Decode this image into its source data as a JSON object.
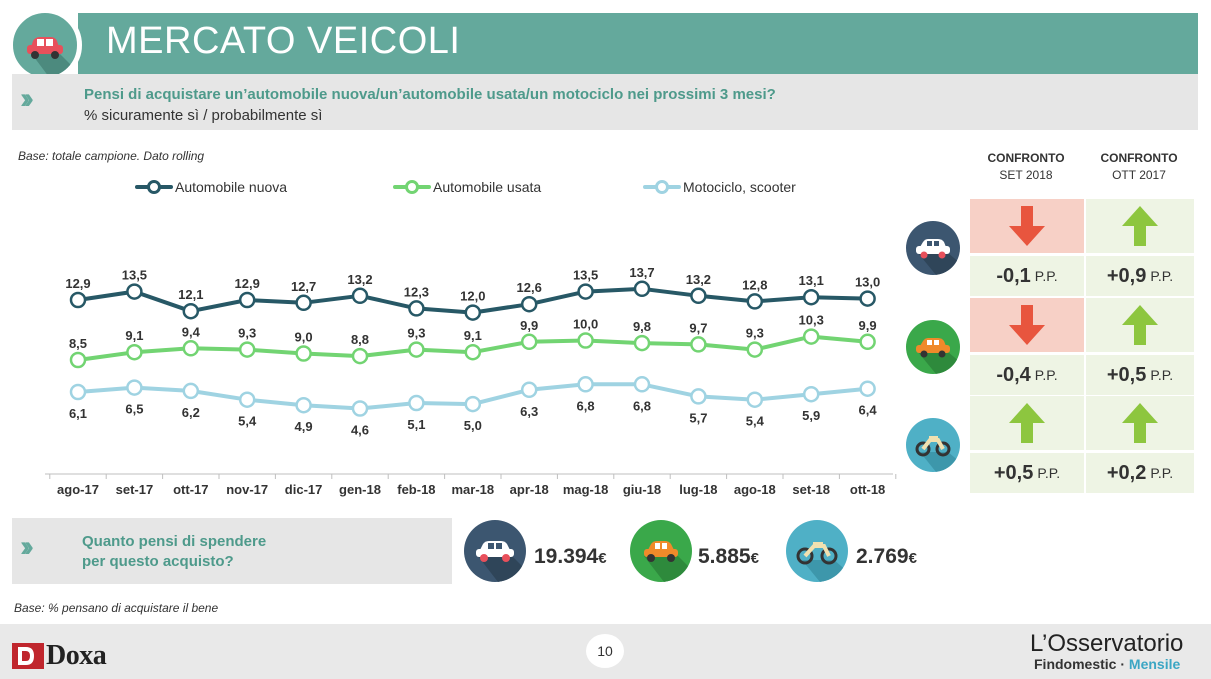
{
  "header": {
    "title": "MERCATO VEICOLI",
    "question": "Pensi di acquistare un’automobile nuova/un’automobile usata/un motociclo nei prossimi 3 mesi?",
    "subtitle": "% sicuramente sì / probabilmente sì"
  },
  "base_note": "Base: totale campione. Dato rolling",
  "chart_data": {
    "type": "line",
    "categories": [
      "ago-17",
      "set-17",
      "ott-17",
      "nov-17",
      "dic-17",
      "gen-18",
      "feb-18",
      "mar-18",
      "apr-18",
      "mag-18",
      "giu-18",
      "lug-18",
      "ago-18",
      "set-18",
      "ott-18"
    ],
    "series": [
      {
        "name": "Automobile nuova",
        "color": "#275866",
        "values": [
          12.9,
          13.5,
          12.1,
          12.9,
          12.7,
          13.2,
          12.3,
          12.0,
          12.6,
          13.5,
          13.7,
          13.2,
          12.8,
          13.1,
          13.0
        ],
        "labels": [
          "12,9",
          "13,5",
          "12,1",
          "12,9",
          "12,7",
          "13,2",
          "12,3",
          "12,0",
          "12,6",
          "13,5",
          "13,7",
          "13,2",
          "12,8",
          "13,1",
          "13,0"
        ]
      },
      {
        "name": "Automobile usata",
        "color": "#72d472",
        "values": [
          8.5,
          9.1,
          9.4,
          9.3,
          9.0,
          8.8,
          9.3,
          9.1,
          9.9,
          10.0,
          9.8,
          9.7,
          9.3,
          10.3,
          9.9
        ],
        "labels": [
          "8,5",
          "9,1",
          "9,4",
          "9,3",
          "9,0",
          "8,8",
          "9,3",
          "9,1",
          "9,9",
          "10,0",
          "9,8",
          "9,7",
          "9,3",
          "10,3",
          "9,9"
        ]
      },
      {
        "name": "Motociclo, scooter",
        "color": "#9fd3e2",
        "values": [
          6.1,
          6.5,
          6.2,
          5.4,
          4.9,
          4.6,
          5.1,
          5.0,
          6.3,
          6.8,
          6.8,
          5.7,
          5.4,
          5.9,
          6.4
        ],
        "labels": [
          "6,1",
          "6,5",
          "6,2",
          "5,4",
          "4,9",
          "4,6",
          "5,1",
          "5,0",
          "6,3",
          "6,8",
          "6,8",
          "5,7",
          "5,4",
          "5,9",
          "6,4"
        ]
      }
    ]
  },
  "comparison": {
    "head1_line1": "CONFRONTO",
    "head1_line2": "SET 2018",
    "head2_line1": "CONFRONTO",
    "head2_line2": "OTT 2017",
    "rows": [
      {
        "vehicle_icon": "car-white-icon",
        "c1_dir": "down",
        "c1_val": "-0,1",
        "c1_unit": "P.P.",
        "c2_dir": "up",
        "c2_val": "+0,9",
        "c2_unit": "P.P."
      },
      {
        "vehicle_icon": "car-orange-icon",
        "c1_dir": "down",
        "c1_val": "-0,4",
        "c1_unit": "P.P.",
        "c2_dir": "up",
        "c2_val": "+0,5",
        "c2_unit": "P.P."
      },
      {
        "vehicle_icon": "motorcycle-icon",
        "c1_dir": "up",
        "c1_val": "+0,5",
        "c1_unit": "P.P.",
        "c2_dir": "up",
        "c2_val": "+0,2",
        "c2_unit": "P.P."
      }
    ]
  },
  "spend": {
    "question_line1": "Quanto pensi di spendere",
    "question_line2": "per questo acquisto?",
    "prices": [
      {
        "value": "19.394",
        "currency": "€"
      },
      {
        "value": "5.885",
        "currency": "€"
      },
      {
        "value": "2.769",
        "currency": "€"
      }
    ]
  },
  "base_note2": "Base: % pensano di acquistare il bene",
  "footer": {
    "page": "10",
    "doxa": "Doxa",
    "brand1": "L’Osservatorio",
    "brand2a": "Findomestic",
    "brand2sep": "·",
    "brand2b": "Mensile"
  },
  "colors": {
    "teal": "#64a99c",
    "dark_blue": "#3c5670",
    "green": "#3aa84a",
    "light_blue": "#4fb0c6",
    "arrow_red": "#e8553e",
    "arrow_green": "#8dc63f"
  }
}
